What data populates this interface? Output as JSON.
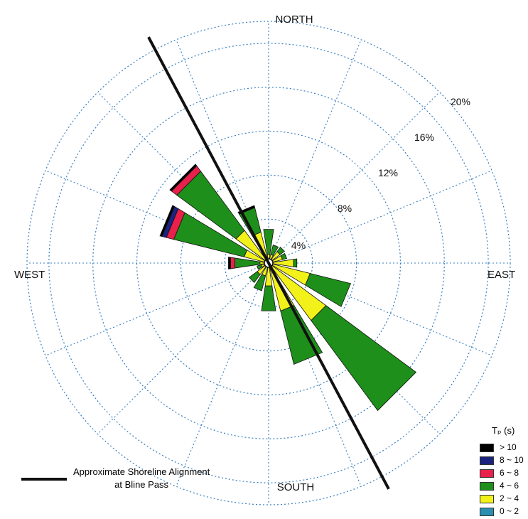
{
  "chart_data": {
    "type": "wind_rose",
    "directions": [
      "N",
      "NNE",
      "NE",
      "ENE",
      "E",
      "ESE",
      "SE",
      "SSE",
      "S",
      "SSW",
      "SW",
      "WSW",
      "W",
      "WNW",
      "NW",
      "NNW"
    ],
    "direction_labels": {
      "north": "NORTH",
      "east": "EAST",
      "south": "SOUTH",
      "west": "WEST"
    },
    "ring_labels": [
      "4%",
      "8%",
      "12%",
      "16%",
      "20%"
    ],
    "rings": [
      4,
      8,
      12,
      16,
      20
    ],
    "rmax": 22,
    "legend": {
      "title": "Tₚ (s)",
      "classes": [
        {
          "label": "> 10",
          "color": "#000000"
        },
        {
          "label": "8 ~ 10",
          "color": "#1a237e"
        },
        {
          "label": "6 ~ 8",
          "color": "#e8204b"
        },
        {
          "label": "4 ~ 6",
          "color": "#1e8f1a"
        },
        {
          "label": "2 ~ 4",
          "color": "#f2f21a"
        },
        {
          "label": "0 ~ 2",
          "color": "#2a8fb0"
        }
      ]
    },
    "series_order": [
      "0 ~ 2",
      "2 ~ 4",
      "4 ~ 6",
      "6 ~ 8",
      "8 ~ 10",
      "> 10"
    ],
    "frequencies": {
      "N": {
        "0 ~ 2": 0.3,
        "2 ~ 4": 0.5,
        "4 ~ 6": 2.3
      },
      "NNE": {
        "0 ~ 2": 0.3,
        "2 ~ 4": 0.5,
        "4 ~ 6": 0.9
      },
      "NE": {
        "0 ~ 2": 0.3,
        "2 ~ 4": 1.0,
        "4 ~ 6": 0.5
      },
      "ENE": {
        "0 ~ 2": 0.3,
        "2 ~ 4": 1.0,
        "4 ~ 6": 0.4
      },
      "E": {
        "0 ~ 2": 0.3,
        "2 ~ 4": 2.0,
        "4 ~ 6": 0.3
      },
      "ESE": {
        "0 ~ 2": 0.3,
        "2 ~ 4": 3.6,
        "4 ~ 6": 3.8
      },
      "SE": {
        "0 ~ 2": 0.3,
        "2 ~ 4": 6.2,
        "4 ~ 6": 10.2
      },
      "SSE": {
        "0 ~ 2": 0.3,
        "2 ~ 4": 4.2,
        "4 ~ 6": 5.0
      },
      "S": {
        "0 ~ 2": 0.3,
        "2 ~ 4": 1.8,
        "4 ~ 6": 2.3
      },
      "SSW": {
        "0 ~ 2": 0.3,
        "2 ~ 4": 0.9,
        "4 ~ 6": 1.4
      },
      "SW": {
        "0 ~ 2": 0.3,
        "2 ~ 4": 1.0,
        "4 ~ 6": 0.9
      },
      "WSW": {
        "0 ~ 2": 0.3,
        "2 ~ 4": 0.4,
        "4 ~ 6": 0.4
      },
      "W": {
        "0 ~ 2": 0.3,
        "2 ~ 4": 0.5,
        "4 ~ 6": 2.3,
        "6 ~ 8": 0.4,
        "> 10": 0.2
      },
      "WNW": {
        "0 ~ 2": 0.3,
        "2 ~ 4": 2.0,
        "4 ~ 6": 6.6,
        "6 ~ 8": 0.7,
        "8 ~ 10": 0.4,
        "> 10": 0.2
      },
      "NW": {
        "0 ~ 2": 0.3,
        "2 ~ 4": 3.4,
        "4 ~ 6": 6.7,
        "6 ~ 8": 0.6,
        "> 10": 0.2
      },
      "NNW": {
        "0 ~ 2": 0.3,
        "2 ~ 4": 2.6,
        "4 ~ 6": 2.3,
        "> 10": 0.2
      }
    },
    "shoreline": {
      "label_line1": "Approximate Shoreline Alignment",
      "label_line2": "at Bline Pass",
      "bearing_deg": 152
    }
  }
}
